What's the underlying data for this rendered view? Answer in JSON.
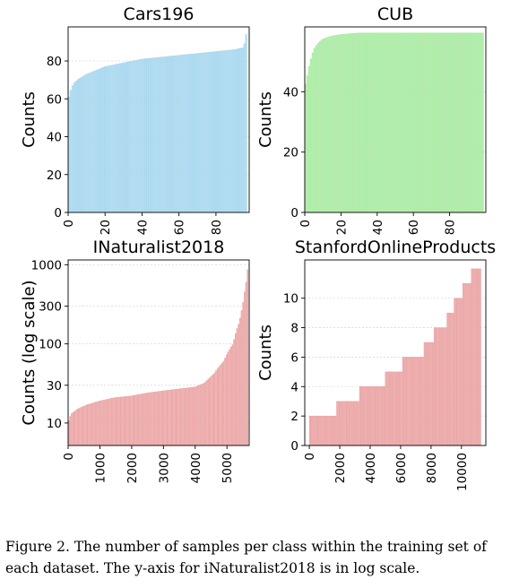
{
  "chart_data": [
    {
      "id": "cars",
      "type": "bar",
      "title": "Cars196",
      "ylabel": "Counts",
      "xlabel": "",
      "bar_color": "#b3def2",
      "edge_color": "#9ed0ea",
      "xlim": [
        0,
        98
      ],
      "ylim": [
        0,
        98
      ],
      "xticks": [
        0,
        20,
        40,
        60,
        80
      ],
      "xtick_labels": [
        "0",
        "20",
        "40",
        "60",
        "80"
      ],
      "yticks": [
        0,
        20,
        40,
        60,
        80
      ],
      "ytick_labels": [
        "0",
        "20",
        "40",
        "60",
        "80"
      ],
      "grid": "y",
      "curve_x": [
        0,
        1,
        2,
        3,
        5,
        10,
        20,
        30,
        40,
        50,
        60,
        70,
        80,
        90,
        95,
        96,
        97
      ],
      "curve_y": [
        59,
        63,
        66,
        68,
        70,
        73,
        77,
        79,
        81,
        82,
        83,
        84,
        85,
        86,
        87,
        91,
        97
      ],
      "n_bars": 98
    },
    {
      "id": "cub",
      "type": "bar",
      "title": "CUB",
      "ylabel": "Counts",
      "xlabel": "",
      "bar_color": "#b6f0b0",
      "edge_color": "#99e290",
      "xlim": [
        0,
        100
      ],
      "ylim": [
        0,
        61.5
      ],
      "xticks": [
        0,
        20,
        40,
        60,
        80
      ],
      "xtick_labels": [
        "0",
        "20",
        "40",
        "60",
        "80"
      ],
      "yticks": [
        0,
        20,
        40
      ],
      "ytick_labels": [
        "0",
        "20",
        "40"
      ],
      "grid": "y",
      "curve_x": [
        0,
        1,
        2,
        3,
        4,
        5,
        6,
        8,
        10,
        15,
        20,
        30,
        99
      ],
      "curve_y": [
        41,
        44,
        47,
        50,
        52,
        54,
        55,
        56.5,
        57.5,
        58.5,
        59,
        59.5,
        59.5
      ],
      "n_bars": 100
    },
    {
      "id": "inat",
      "type": "bar",
      "title": "INaturalist2018",
      "ylabel": "Counts (log scale)",
      "xlabel": "",
      "yscale": "log",
      "bar_color": "#f1b3b3",
      "edge_color": "#e69b9b",
      "xlim": [
        0,
        5700
      ],
      "ylim": [
        5.2,
        1150
      ],
      "xticks": [
        0,
        1000,
        2000,
        3000,
        4000,
        5000
      ],
      "xtick_labels": [
        "0",
        "1000",
        "2000",
        "3000",
        "4000",
        "5000"
      ],
      "yticks": [
        10,
        30,
        100,
        300,
        1000
      ],
      "ytick_labels": [
        "10",
        "30",
        "100",
        "300",
        "1000"
      ],
      "grid": "y",
      "curve_x": [
        0,
        100,
        300,
        600,
        1000,
        1500,
        2000,
        2500,
        3000,
        3500,
        4000,
        4300,
        4600,
        4900,
        5200,
        5400,
        5500,
        5600,
        5680
      ],
      "curve_y": [
        10,
        13,
        15,
        17,
        19,
        21,
        22,
        24,
        25.5,
        27,
        28.5,
        32,
        42,
        60,
        100,
        190,
        300,
        550,
        1000
      ],
      "n_bars": 120
    },
    {
      "id": "sop",
      "type": "bar",
      "title": "StanfordOnlineProducts",
      "ylabel": "Counts",
      "xlabel": "",
      "bar_color": "#f1b3b3",
      "edge_color": "#e69b9b",
      "xlim": [
        -300,
        11600
      ],
      "ylim": [
        0,
        12.6
      ],
      "xticks": [
        0,
        2000,
        4000,
        6000,
        8000,
        10000
      ],
      "xtick_labels": [
        "0",
        "2000",
        "4000",
        "6000",
        "8000",
        "10000"
      ],
      "yticks": [
        0,
        2,
        4,
        6,
        8,
        10
      ],
      "ytick_labels": [
        "0",
        "2",
        "4",
        "6",
        "8",
        "10"
      ],
      "grid": "y",
      "steps": [
        {
          "from": 0,
          "to": 1800,
          "value": 2
        },
        {
          "from": 1800,
          "to": 3300,
          "value": 3
        },
        {
          "from": 3300,
          "to": 5000,
          "value": 4
        },
        {
          "from": 5000,
          "to": 6100,
          "value": 5
        },
        {
          "from": 6100,
          "to": 7500,
          "value": 6
        },
        {
          "from": 7500,
          "to": 8200,
          "value": 7
        },
        {
          "from": 8200,
          "to": 9000,
          "value": 8
        },
        {
          "from": 9000,
          "to": 9500,
          "value": 9
        },
        {
          "from": 9500,
          "to": 10100,
          "value": 10
        },
        {
          "from": 10100,
          "to": 10600,
          "value": 11
        },
        {
          "from": 10600,
          "to": 11300,
          "value": 12
        }
      ],
      "n_bars": 120
    }
  ],
  "caption": {
    "text": "Figure 2. The number of samples per class within the training set of each dataset. The y-axis for iNaturalist2018 is in log scale."
  }
}
